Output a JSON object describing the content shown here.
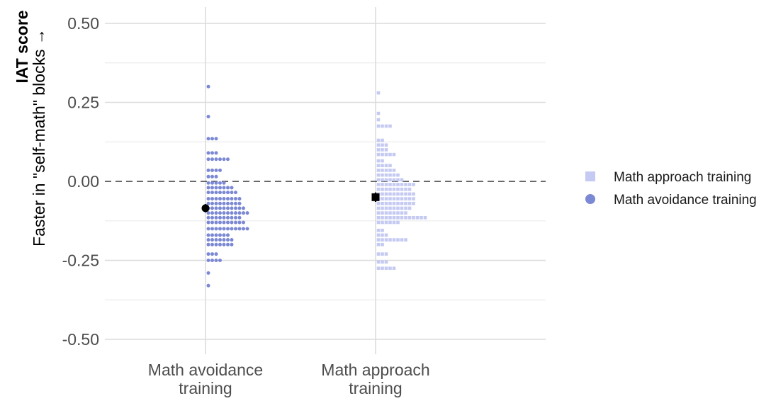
{
  "chart_data": {
    "type": "dotplot",
    "ylabel_line1": "IAT score",
    "ylabel_line2": "Faster in \"self-math\" blocks →",
    "ylim": [
      -0.55,
      0.55
    ],
    "yticks": [
      0.5,
      0.25,
      0.0,
      -0.25,
      -0.5
    ],
    "ytick_labels": [
      "0.50",
      "0.25",
      "0.00",
      "-0.25",
      "-0.50"
    ],
    "categories": [
      "Math avoidance\ntraining",
      "Math approach\ntraining"
    ],
    "reference_line": 0,
    "grid": true,
    "legend_position": "right",
    "series": [
      {
        "name": "Math approach training",
        "marker": "square",
        "color": "#c5caf2",
        "category_index": 1,
        "mean": -0.05,
        "se": 0.015,
        "bins": [
          {
            "y": 0.28,
            "n": 1
          },
          {
            "y": 0.215,
            "n": 1
          },
          {
            "y": 0.195,
            "n": 1
          },
          {
            "y": 0.175,
            "n": 4
          },
          {
            "y": 0.13,
            "n": 2
          },
          {
            "y": 0.115,
            "n": 3
          },
          {
            "y": 0.1,
            "n": 3
          },
          {
            "y": 0.085,
            "n": 5
          },
          {
            "y": 0.065,
            "n": 2
          },
          {
            "y": 0.05,
            "n": 4
          },
          {
            "y": 0.035,
            "n": 5
          },
          {
            "y": 0.02,
            "n": 6
          },
          {
            "y": 0.005,
            "n": 7
          },
          {
            "y": -0.01,
            "n": 10
          },
          {
            "y": -0.025,
            "n": 9
          },
          {
            "y": -0.04,
            "n": 10
          },
          {
            "y": -0.055,
            "n": 10
          },
          {
            "y": -0.07,
            "n": 10
          },
          {
            "y": -0.085,
            "n": 9
          },
          {
            "y": -0.1,
            "n": 8
          },
          {
            "y": -0.115,
            "n": 13
          },
          {
            "y": -0.13,
            "n": 6
          },
          {
            "y": -0.155,
            "n": 2
          },
          {
            "y": -0.17,
            "n": 3
          },
          {
            "y": -0.185,
            "n": 8
          },
          {
            "y": -0.2,
            "n": 2
          },
          {
            "y": -0.23,
            "n": 3
          },
          {
            "y": -0.255,
            "n": 3
          },
          {
            "y": -0.275,
            "n": 5
          }
        ]
      },
      {
        "name": "Math avoidance training",
        "marker": "circle",
        "color": "#7b88d4",
        "category_index": 0,
        "mean": -0.085,
        "se": 0.013,
        "bins": [
          {
            "y": 0.3,
            "n": 1
          },
          {
            "y": 0.205,
            "n": 1
          },
          {
            "y": 0.135,
            "n": 3
          },
          {
            "y": 0.09,
            "n": 3
          },
          {
            "y": 0.07,
            "n": 6
          },
          {
            "y": 0.035,
            "n": 4
          },
          {
            "y": 0.015,
            "n": 3
          },
          {
            "y": -0.005,
            "n": 5
          },
          {
            "y": -0.02,
            "n": 7
          },
          {
            "y": -0.035,
            "n": 8
          },
          {
            "y": -0.055,
            "n": 9
          },
          {
            "y": -0.07,
            "n": 9
          },
          {
            "y": -0.085,
            "n": 10
          },
          {
            "y": -0.1,
            "n": 11
          },
          {
            "y": -0.115,
            "n": 9
          },
          {
            "y": -0.13,
            "n": 10
          },
          {
            "y": -0.15,
            "n": 11
          },
          {
            "y": -0.17,
            "n": 6
          },
          {
            "y": -0.185,
            "n": 7
          },
          {
            "y": -0.2,
            "n": 7
          },
          {
            "y": -0.23,
            "n": 3
          },
          {
            "y": -0.25,
            "n": 4
          },
          {
            "y": -0.29,
            "n": 1
          },
          {
            "y": -0.33,
            "n": 1
          }
        ]
      }
    ]
  }
}
